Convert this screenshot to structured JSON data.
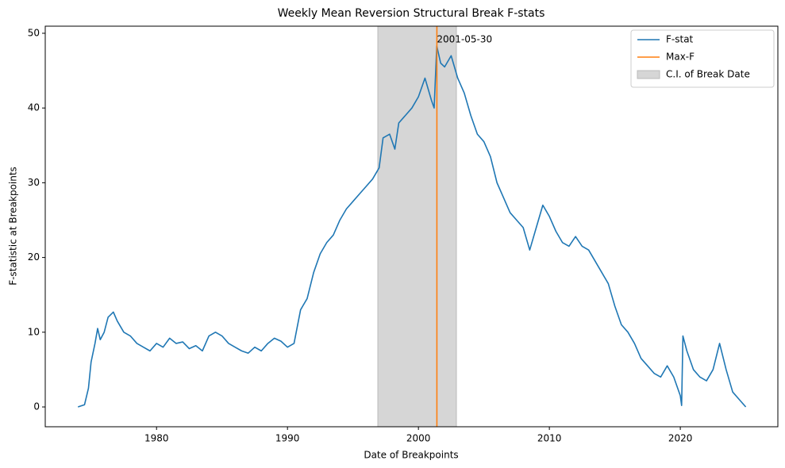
{
  "chart_data": {
    "type": "line",
    "title": "Weekly Mean Reversion Structural Break F-stats",
    "xlabel": "Date of Breakpoints",
    "ylabel": "F-statistic at Breakpoints",
    "x": [
      1974.0,
      1974.5,
      1974.8,
      1975.0,
      1975.3,
      1975.5,
      1975.7,
      1976.0,
      1976.3,
      1976.7,
      1977.0,
      1977.5,
      1978.0,
      1978.5,
      1979.0,
      1979.5,
      1980.0,
      1980.5,
      1981.0,
      1981.5,
      1982.0,
      1982.5,
      1983.0,
      1983.5,
      1984.0,
      1984.5,
      1985.0,
      1985.5,
      1986.0,
      1986.5,
      1987.0,
      1987.5,
      1988.0,
      1988.5,
      1989.0,
      1989.5,
      1990.0,
      1990.5,
      1991.0,
      1991.5,
      1992.0,
      1992.5,
      1993.0,
      1993.5,
      1994.0,
      1994.5,
      1995.0,
      1995.5,
      1996.0,
      1996.5,
      1997.0,
      1997.3,
      1997.8,
      1998.2,
      1998.5,
      1999.0,
      1999.5,
      2000.0,
      2000.5,
      2001.0,
      2001.2,
      2001.4,
      2001.7,
      2002.0,
      2002.5,
      2003.0,
      2003.5,
      2004.0,
      2004.5,
      2005.0,
      2005.5,
      2006.0,
      2006.5,
      2007.0,
      2007.5,
      2008.0,
      2008.5,
      2009.0,
      2009.5,
      2010.0,
      2010.5,
      2011.0,
      2011.5,
      2012.0,
      2012.5,
      2013.0,
      2013.5,
      2014.0,
      2014.5,
      2015.0,
      2015.5,
      2016.0,
      2016.5,
      2017.0,
      2017.5,
      2018.0,
      2018.5,
      2019.0,
      2019.5,
      2020.0,
      2020.1,
      2020.2,
      2020.5,
      2021.0,
      2021.5,
      2022.0,
      2022.5,
      2023.0,
      2023.5,
      2024.0,
      2024.5,
      2025.0
    ],
    "series": [
      {
        "name": "F-stat",
        "color": "#1f77b4",
        "values": [
          0,
          0.3,
          2.5,
          6,
          8.5,
          10.5,
          9,
          10,
          12,
          12.7,
          11.5,
          10,
          9.5,
          8.5,
          8,
          7.5,
          8.5,
          8,
          9.2,
          8.5,
          8.7,
          7.8,
          8.2,
          7.5,
          9.5,
          10,
          9.5,
          8.5,
          8,
          7.5,
          7.2,
          8,
          7.5,
          8.5,
          9.2,
          8.8,
          8,
          8.5,
          13,
          14.5,
          18,
          20.5,
          22,
          23,
          25,
          26.5,
          27.5,
          28.5,
          29.5,
          30.5,
          32,
          36,
          36.5,
          34.5,
          38,
          39,
          40,
          41.5,
          44,
          41,
          40,
          48.3,
          46,
          45.5,
          47,
          44,
          42,
          39,
          36.5,
          35.5,
          33.5,
          30,
          28,
          26,
          25,
          24,
          21,
          24,
          27,
          25.5,
          23.5,
          22,
          21.5,
          22.8,
          21.5,
          21,
          19.5,
          18,
          16.5,
          13.5,
          11,
          10,
          8.5,
          6.5,
          5.5,
          4.5,
          4,
          5.5,
          4,
          1.5,
          0.2,
          9.5,
          7.5,
          5,
          4,
          3.5,
          5,
          8.5,
          5,
          2,
          1,
          0
        ]
      }
    ],
    "vline": {
      "name": "Max-F",
      "x": 2001.41,
      "color": "#ff7f0e",
      "label": "2001-05-30"
    },
    "band": {
      "name": "C.I. of Break Date",
      "x": [
        1996.9,
        2002.9
      ],
      "color": "#d6d6d6"
    },
    "xlim": [
      1971.5,
      2027.45
    ],
    "ylim": [
      -2.65,
      50.95
    ],
    "xticks": [
      1980,
      1990,
      2000,
      2010,
      2020
    ],
    "yticks": [
      0,
      10,
      20,
      30,
      40,
      50
    ],
    "legend": "upper right"
  }
}
